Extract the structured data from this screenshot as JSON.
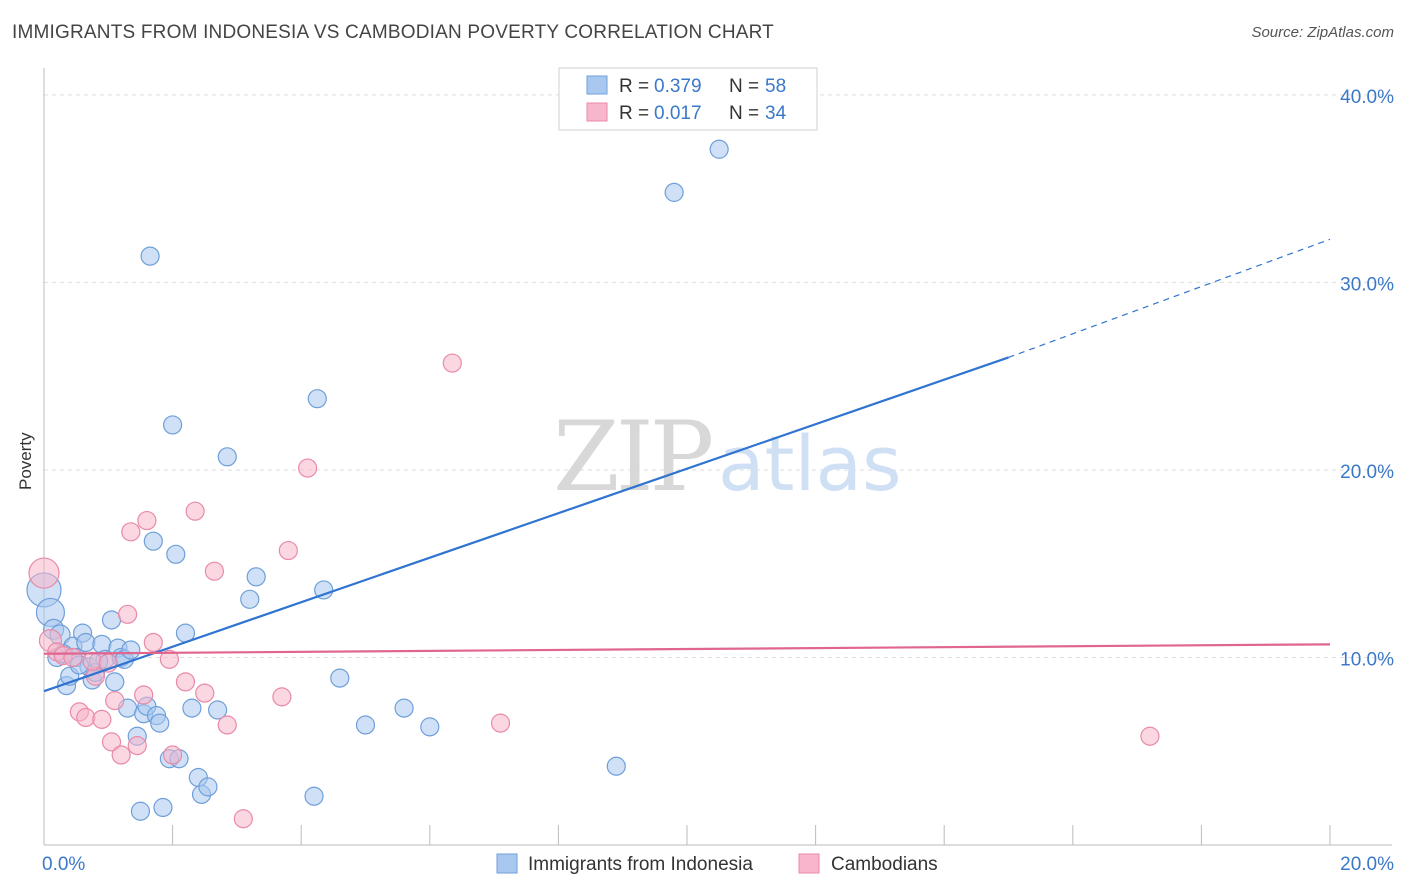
{
  "title": "IMMIGRANTS FROM INDONESIA VS CAMBODIAN POVERTY CORRELATION CHART",
  "source": "Source: ZipAtlas.com",
  "watermark": {
    "zip": "ZIP",
    "atlas": "atlas"
  },
  "legend_top": [
    {
      "r_label": "R =",
      "r_value": "0.379",
      "n_label": "N =",
      "n_value": "58"
    },
    {
      "r_label": "R =",
      "r_value": "0.017",
      "n_label": "N =",
      "n_value": "34"
    }
  ],
  "colors": {
    "blue_fill": "#a9c8f0",
    "blue_stroke": "#6f9fd8",
    "blue_line": "#2f74d0",
    "pink_fill": "#f7b6cb",
    "pink_stroke": "#e98aa8",
    "pink_line": "#e0668e",
    "axis_text": "#3a78c9",
    "grid": "#dddddd"
  },
  "chart_data": {
    "type": "scatter",
    "xlabel": "",
    "ylabel": "Poverty",
    "xlim": [
      0,
      20
    ],
    "ylim": [
      0,
      40.9
    ],
    "x_tick_labels": [
      "0.0%",
      "20.0%"
    ],
    "y_ticks": [
      10,
      20,
      30,
      40
    ],
    "y_tick_labels": [
      "10.0%",
      "20.0%",
      "30.0%",
      "40.0%"
    ],
    "grid": true,
    "legend_position": "top-center and bottom",
    "series": [
      {
        "name": "Immigrants from Indonesia",
        "points": [
          [
            0.0,
            13.6
          ],
          [
            0.1,
            12.4
          ],
          [
            0.15,
            11.5
          ],
          [
            0.2,
            10.0
          ],
          [
            0.25,
            11.2
          ],
          [
            0.35,
            8.5
          ],
          [
            0.4,
            9.0
          ],
          [
            0.45,
            10.6
          ],
          [
            0.5,
            10.0
          ],
          [
            0.6,
            11.3
          ],
          [
            0.65,
            10.8
          ],
          [
            0.7,
            9.5
          ],
          [
            0.75,
            8.8
          ],
          [
            0.8,
            9.2
          ],
          [
            0.9,
            10.7
          ],
          [
            0.95,
            9.9
          ],
          [
            1.05,
            12.0
          ],
          [
            1.1,
            8.7
          ],
          [
            1.15,
            10.5
          ],
          [
            1.2,
            10.0
          ],
          [
            1.25,
            9.9
          ],
          [
            1.3,
            7.3
          ],
          [
            1.35,
            10.4
          ],
          [
            1.45,
            5.8
          ],
          [
            1.5,
            1.8
          ],
          [
            1.55,
            7.0
          ],
          [
            1.6,
            7.4
          ],
          [
            1.65,
            31.4
          ],
          [
            1.7,
            16.2
          ],
          [
            1.75,
            6.9
          ],
          [
            1.8,
            6.5
          ],
          [
            1.85,
            2.0
          ],
          [
            1.95,
            4.6
          ],
          [
            2.0,
            22.4
          ],
          [
            2.05,
            15.5
          ],
          [
            2.1,
            4.6
          ],
          [
            2.2,
            11.3
          ],
          [
            2.3,
            7.3
          ],
          [
            2.4,
            3.6
          ],
          [
            2.45,
            2.7
          ],
          [
            2.55,
            3.1
          ],
          [
            2.7,
            7.2
          ],
          [
            2.85,
            20.7
          ],
          [
            3.2,
            13.1
          ],
          [
            3.3,
            14.3
          ],
          [
            4.2,
            2.6
          ],
          [
            4.25,
            23.8
          ],
          [
            4.35,
            13.6
          ],
          [
            4.6,
            8.9
          ],
          [
            5.0,
            6.4
          ],
          [
            5.6,
            7.3
          ],
          [
            6.0,
            6.3
          ],
          [
            8.9,
            4.2
          ],
          [
            9.8,
            34.8
          ],
          [
            10.5,
            37.1
          ],
          [
            0.3,
            10.2
          ],
          [
            0.55,
            9.6
          ],
          [
            0.85,
            9.8
          ]
        ],
        "sizes": [
          34,
          28,
          20,
          18,
          20,
          18,
          18,
          18,
          18,
          18,
          18,
          18,
          18,
          18,
          18,
          18,
          18,
          18,
          18,
          18,
          18,
          18,
          18,
          18,
          18,
          18,
          18,
          18,
          18,
          18,
          18,
          18,
          18,
          18,
          18,
          18,
          18,
          18,
          18,
          18,
          18,
          18,
          18,
          18,
          18,
          18,
          18,
          18,
          18,
          18,
          18,
          18,
          18,
          18,
          18,
          18,
          18,
          18
        ],
        "trendline": {
          "x": [
            0,
            15
          ],
          "y": [
            8.2,
            26.0
          ],
          "dashed_to": {
            "x": 20,
            "y": 32.3
          }
        }
      },
      {
        "name": "Cambodians",
        "points": [
          [
            0.0,
            14.5
          ],
          [
            0.1,
            10.9
          ],
          [
            0.2,
            10.3
          ],
          [
            0.3,
            10.1
          ],
          [
            0.45,
            10.0
          ],
          [
            0.55,
            7.1
          ],
          [
            0.65,
            6.8
          ],
          [
            0.8,
            9.0
          ],
          [
            0.9,
            6.7
          ],
          [
            1.05,
            5.5
          ],
          [
            1.1,
            7.7
          ],
          [
            1.2,
            4.8
          ],
          [
            1.3,
            12.3
          ],
          [
            1.35,
            16.7
          ],
          [
            1.45,
            5.3
          ],
          [
            1.55,
            8.0
          ],
          [
            1.6,
            17.3
          ],
          [
            1.7,
            10.8
          ],
          [
            1.95,
            9.9
          ],
          [
            2.0,
            4.8
          ],
          [
            2.2,
            8.7
          ],
          [
            2.35,
            17.8
          ],
          [
            2.5,
            8.1
          ],
          [
            2.65,
            14.6
          ],
          [
            2.85,
            6.4
          ],
          [
            3.1,
            1.4
          ],
          [
            3.7,
            7.9
          ],
          [
            3.8,
            15.7
          ],
          [
            4.1,
            20.1
          ],
          [
            6.35,
            25.7
          ],
          [
            7.1,
            6.5
          ],
          [
            17.2,
            5.8
          ],
          [
            0.75,
            9.8
          ],
          [
            1.0,
            9.7
          ]
        ],
        "sizes": [
          30,
          22,
          18,
          18,
          18,
          18,
          18,
          18,
          18,
          18,
          18,
          18,
          18,
          18,
          18,
          18,
          18,
          18,
          18,
          18,
          18,
          18,
          18,
          18,
          18,
          18,
          18,
          18,
          18,
          18,
          18,
          18,
          18,
          18
        ],
        "trendline": {
          "x": [
            0,
            20
          ],
          "y": [
            10.2,
            10.7
          ]
        }
      }
    ]
  }
}
